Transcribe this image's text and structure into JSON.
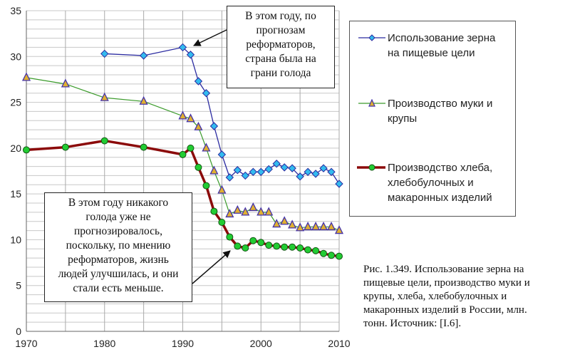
{
  "chart_data": {
    "type": "line",
    "xlim": [
      1970,
      2010
    ],
    "ylim": [
      0,
      35
    ],
    "x_ticks": [
      "1970",
      "1980",
      "1990",
      "2000",
      "2010"
    ],
    "y_ticks": [
      "0",
      "5",
      "10",
      "15",
      "20",
      "25",
      "30",
      "35"
    ],
    "grid": true,
    "legend_placement": "right",
    "series": [
      {
        "name": "Использование зерна на пищевые цели",
        "color": "#2a2aa0",
        "marker_color": "#33bbee",
        "marker": "diamond",
        "x": [
          1980,
          1985,
          1990,
          1991,
          1992,
          1993,
          1994,
          1995,
          1996,
          1997,
          1998,
          1999,
          2000,
          2001,
          2002,
          2003,
          2004,
          2005,
          2006,
          2007,
          2008,
          2009,
          2010
        ],
        "y": [
          30.3,
          30.1,
          31.0,
          30.2,
          27.3,
          26.0,
          22.4,
          19.3,
          16.8,
          17.6,
          17.0,
          17.4,
          17.4,
          17.7,
          18.3,
          17.9,
          17.8,
          16.9,
          17.4,
          17.2,
          17.8,
          17.4,
          16.1
        ]
      },
      {
        "name": "Производство муки и крупы",
        "color": "#3a9a2a",
        "marker_color": "#e0b030",
        "marker": "triangle",
        "x": [
          1970,
          1975,
          1980,
          1985,
          1990,
          1991,
          1992,
          1993,
          1994,
          1995,
          1996,
          1997,
          1998,
          1999,
          2000,
          2001,
          2002,
          2003,
          2004,
          2005,
          2006,
          2007,
          2008,
          2009,
          2010
        ],
        "y": [
          27.7,
          27.0,
          25.5,
          25.1,
          23.5,
          23.2,
          22.3,
          20.0,
          17.5,
          15.4,
          12.8,
          13.2,
          13.0,
          13.5,
          13.0,
          13.0,
          11.7,
          12.0,
          11.6,
          11.3,
          11.4,
          11.4,
          11.4,
          11.4,
          11.0
        ]
      },
      {
        "name": "Производство хлеба, хлебобулочных и макаронных изделий",
        "color": "#8b0a0a",
        "marker_color": "#22cc33",
        "marker": "circle",
        "x": [
          1970,
          1975,
          1980,
          1985,
          1990,
          1991,
          1992,
          1993,
          1994,
          1995,
          1996,
          1997,
          1998,
          1999,
          2000,
          2001,
          2002,
          2003,
          2004,
          2005,
          2006,
          2007,
          2008,
          2009,
          2010
        ],
        "y": [
          19.8,
          20.1,
          20.8,
          20.1,
          19.3,
          20.0,
          17.9,
          15.9,
          13.1,
          11.9,
          10.3,
          9.3,
          9.1,
          9.9,
          9.7,
          9.4,
          9.3,
          9.2,
          9.2,
          9.1,
          8.9,
          8.8,
          8.5,
          8.3,
          8.2
        ]
      }
    ],
    "legend": [
      {
        "line1": "Использование зерна",
        "line2": "на пищевые цели"
      },
      {
        "line1": "Производство муки и",
        "line2": "крупы"
      },
      {
        "line1": "Производство хлеба,",
        "line2": "хлебобулочных и",
        "line3": "макаронных изделий"
      }
    ],
    "annotations": [
      {
        "lines": [
          "В этом году, по",
          "прогнозам",
          "реформаторов,",
          "страна была на",
          "грани голода"
        ]
      },
      {
        "lines": [
          "В этом году никакого",
          "голода уже не",
          "прогнозировалось,",
          "поскольку, по мнению",
          "реформаторов, жизнь",
          "людей улучшилась, и они",
          "стали есть меньше."
        ]
      }
    ]
  },
  "caption": {
    "lines": [
      "Рис. 1.349. Использование зерна на",
      "пищевые цели, производство муки и",
      "крупы, хлеба, хлебобулочных и",
      "макаронных изделий в России, млн.",
      "тонн. Источник: [I.6]."
    ]
  }
}
